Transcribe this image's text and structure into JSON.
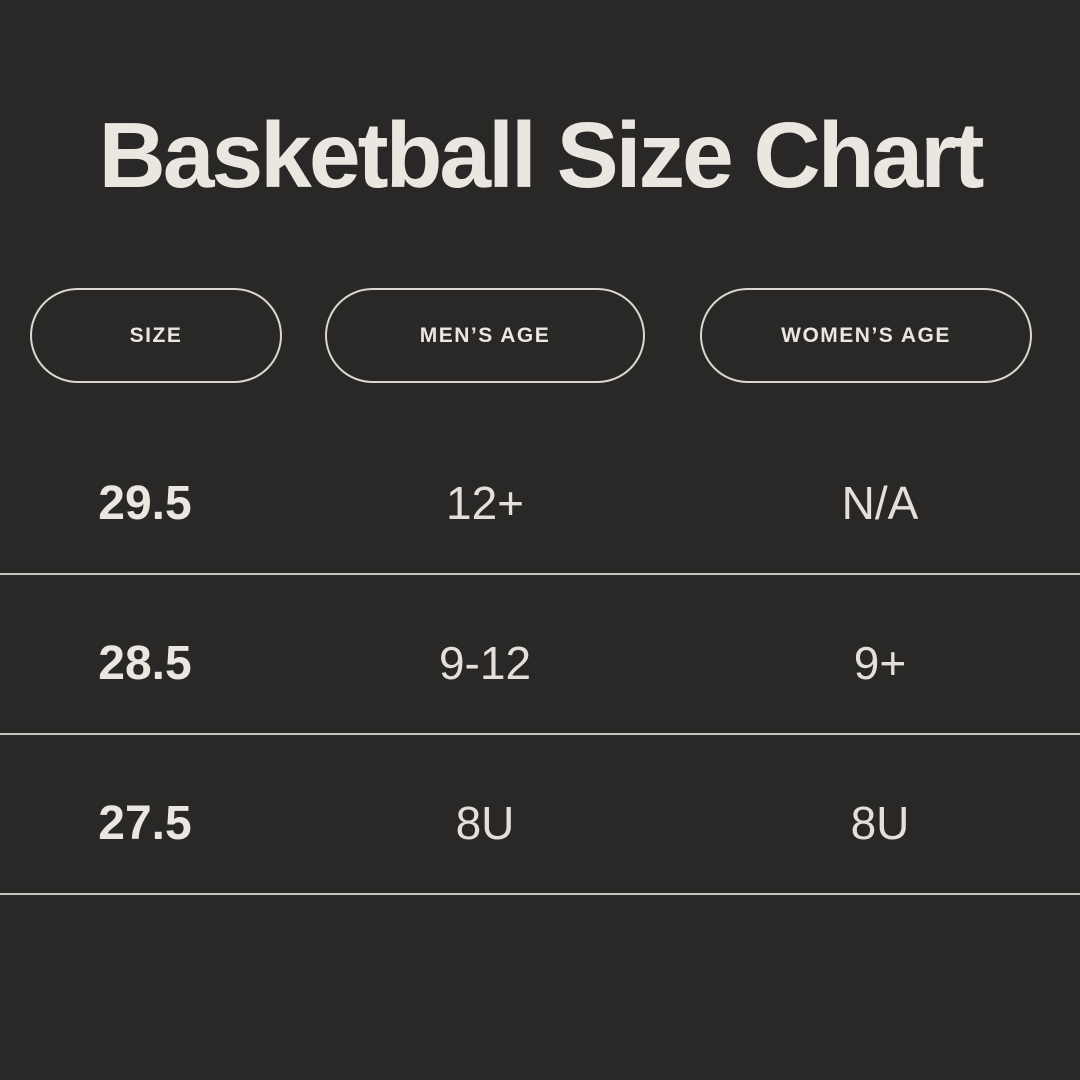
{
  "title": "Basketball Size Chart",
  "colors": {
    "background": "#292827",
    "text": "#E9E7E0",
    "muted": "#E2E0D9",
    "pill_border": "#D9D7D0",
    "divider": "#C6C4BE"
  },
  "table": {
    "headers": [
      {
        "label": "SIZE"
      },
      {
        "label": "MEN’S AGE"
      },
      {
        "label": "WOMEN’S AGE"
      }
    ],
    "rows": [
      {
        "size": "29.5",
        "mens_age": "12+",
        "womens_age": "N/A"
      },
      {
        "size": "28.5",
        "mens_age": "9-12",
        "womens_age": "9+"
      },
      {
        "size": "27.5",
        "mens_age": "8U",
        "womens_age": "8U"
      }
    ]
  },
  "chart_data": {
    "type": "table",
    "title": "Basketball Size Chart",
    "columns": [
      "SIZE",
      "MEN’S AGE",
      "WOMEN’S AGE"
    ],
    "rows": [
      [
        "29.5",
        "12+",
        "N/A"
      ],
      [
        "28.5",
        "9-12",
        "9+"
      ],
      [
        "27.5",
        "8U",
        "8U"
      ]
    ]
  }
}
